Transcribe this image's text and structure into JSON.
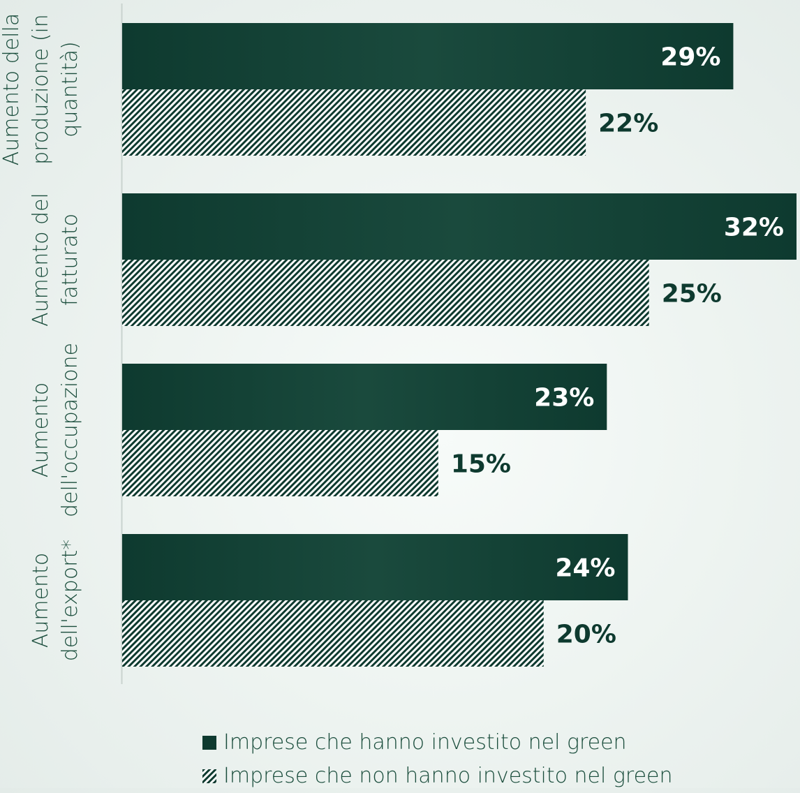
{
  "colors": {
    "invested": "#0e3a2f",
    "invested_highlight": "#1c4f40",
    "not_invested_hatch": "#0e3a2f",
    "not_invested_bg": "#ffffff",
    "value_text_light": "#ffffff",
    "value_text_dark": "#0e3a2f",
    "axis": "#c9d3cf"
  },
  "legend": {
    "invested": "Imprese che hanno investito nel green",
    "not_invested": "Imprese che non hanno investito nel green"
  },
  "chart_data": {
    "type": "bar",
    "orientation": "horizontal",
    "categories": [
      "Aumento della produzione (in quantità)",
      "Aumento del fatturato",
      "Aumento dell'occupazione",
      "Aumento dell'export*"
    ],
    "category_label_lines": [
      [
        "Aumento della",
        "produzione (in",
        "quantità)"
      ],
      [
        "Aumento del",
        "fatturato"
      ],
      [
        "Aumento",
        "dell'occupazione"
      ],
      [
        "Aumento",
        "dell'export*"
      ]
    ],
    "series": [
      {
        "name": "Imprese che hanno investito nel green",
        "values": [
          29,
          32,
          23,
          24
        ],
        "labels": [
          "29%",
          "32%",
          "23%",
          "24%"
        ]
      },
      {
        "name": "Imprese che non hanno investito nel green",
        "values": [
          22,
          25,
          15,
          20
        ],
        "labels": [
          "22%",
          "25%",
          "15%",
          "20%"
        ]
      }
    ],
    "xlim": [
      0,
      32
    ],
    "grid": false,
    "legend_position": "bottom"
  }
}
